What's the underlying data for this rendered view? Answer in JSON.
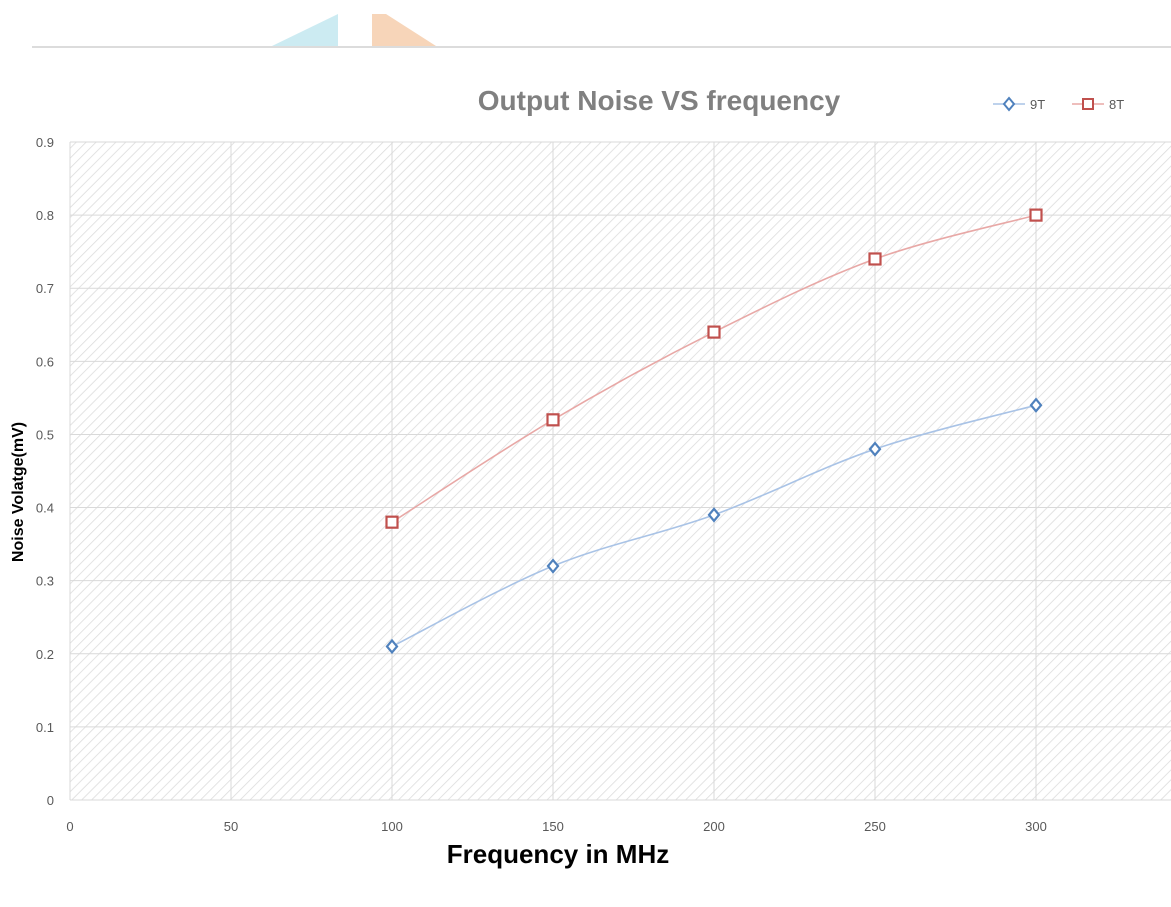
{
  "chart_data": {
    "type": "line",
    "title": "Output Noise VS frequency",
    "xlabel": "Frequency in MHz",
    "ylabel": "Noise Volatge(mV)",
    "x_ticks": [
      0,
      50,
      100,
      150,
      200,
      250,
      300
    ],
    "y_ticks": [
      0,
      0.1,
      0.2,
      0.3,
      0.4,
      0.5,
      0.6,
      0.7,
      0.8,
      0.9
    ],
    "xlim": [
      0,
      350
    ],
    "ylim": [
      0,
      0.9
    ],
    "grid": true,
    "legend_position": "top-right",
    "x": [
      100,
      150,
      200,
      250,
      300
    ],
    "series": [
      {
        "name": "9T",
        "marker": "diamond",
        "color": "#4f81bd",
        "line_color": "#a9c3e6",
        "values": [
          0.21,
          0.32,
          0.39,
          0.48,
          0.54
        ]
      },
      {
        "name": "8T",
        "marker": "square",
        "color": "#c0504d",
        "line_color": "#e8a8a6",
        "values": [
          0.38,
          0.52,
          0.64,
          0.74,
          0.8
        ]
      }
    ]
  }
}
